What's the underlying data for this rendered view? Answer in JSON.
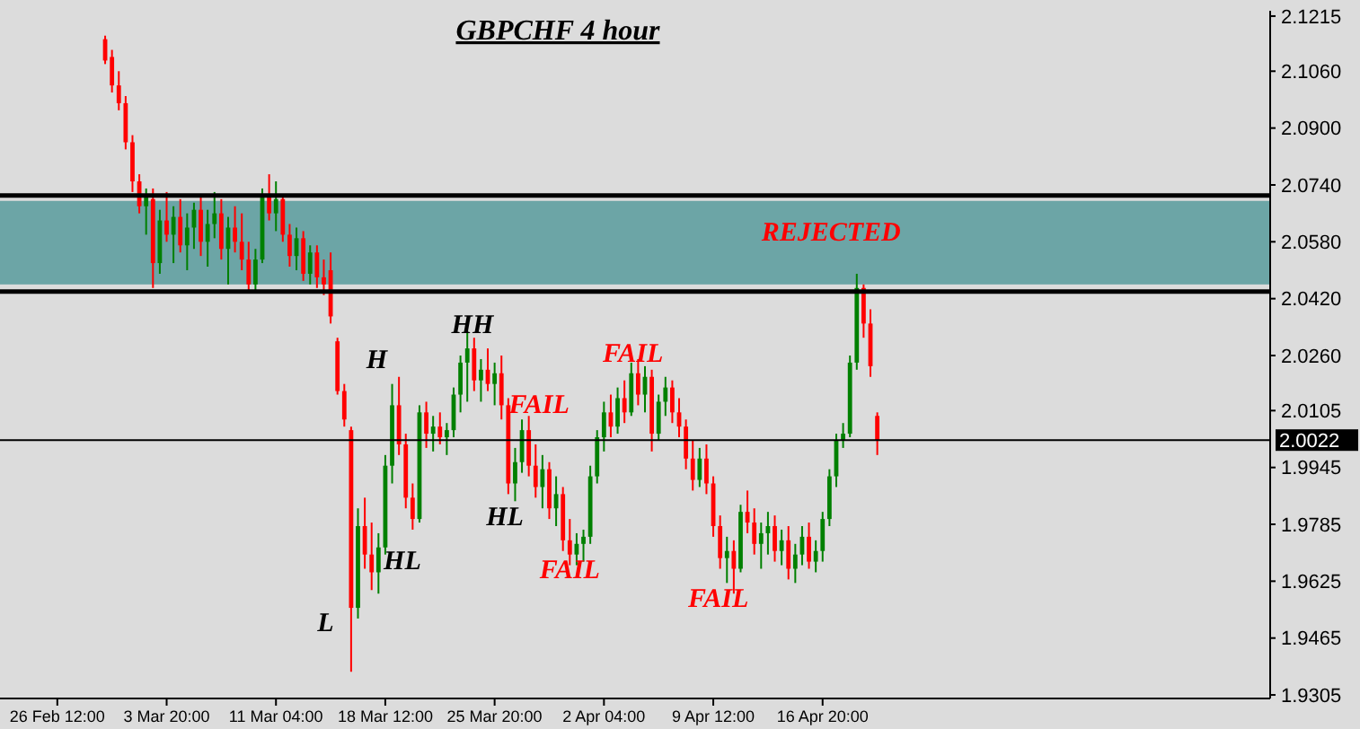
{
  "chart_data": {
    "type": "candlestick",
    "title": "GBPCHF 4 hour",
    "categories": [
      "26 Feb 12:00",
      null,
      null,
      null,
      null,
      null,
      null,
      null,
      null,
      null,
      null,
      null,
      null,
      null,
      null,
      null,
      "3 Mar 20:00",
      null,
      null,
      null,
      null,
      null,
      null,
      null,
      null,
      null,
      null,
      null,
      null,
      null,
      null,
      null,
      "11 Mar 04:00",
      null,
      null,
      null,
      null,
      null,
      null,
      null,
      null,
      null,
      null,
      null,
      null,
      null,
      null,
      null,
      "18 Mar 12:00",
      null,
      null,
      null,
      null,
      null,
      null,
      null,
      null,
      null,
      null,
      null,
      null,
      null,
      null,
      null,
      "25 Mar 20:00",
      null,
      null,
      null,
      null,
      null,
      null,
      null,
      null,
      null,
      null,
      null,
      null,
      null,
      null,
      null,
      "2 Apr 04:00",
      null,
      null,
      null,
      null,
      null,
      null,
      null,
      null,
      null,
      null,
      null,
      null,
      null,
      null,
      null,
      "9 Apr 12:00",
      null,
      null,
      null,
      null,
      null,
      null,
      null,
      null,
      null,
      null,
      null,
      null,
      null,
      null,
      null,
      "16 Apr 20:00",
      null,
      null,
      null,
      null,
      null,
      null,
      null,
      null,
      null,
      null,
      null,
      null,
      null,
      null,
      null,
      null,
      null,
      null,
      null,
      null,
      null,
      null,
      null,
      null,
      null,
      null,
      null,
      null,
      null,
      null,
      null,
      null,
      null,
      null,
      null,
      null,
      null,
      null,
      null,
      null,
      null,
      null,
      null,
      null,
      null,
      null,
      null,
      null,
      null,
      null,
      null,
      null,
      null,
      null,
      null,
      null,
      null,
      null,
      null,
      null,
      null,
      null,
      null,
      null,
      null
    ],
    "ohlc": [
      null,
      null,
      null,
      null,
      null,
      null,
      null,
      [
        2.115,
        2.116,
        2.108,
        2.109
      ],
      [
        2.11,
        2.112,
        2.1,
        2.102
      ],
      [
        2.102,
        2.106,
        2.095,
        2.097
      ],
      [
        2.097,
        2.099,
        2.084,
        2.086
      ],
      [
        2.086,
        2.088,
        2.072,
        2.075
      ],
      [
        2.075,
        2.077,
        2.066,
        2.068
      ],
      [
        2.068,
        2.073,
        2.06,
        2.071
      ],
      [
        2.07,
        2.073,
        2.045,
        2.052
      ],
      [
        2.052,
        2.067,
        2.049,
        2.064
      ],
      [
        2.064,
        2.072,
        2.058,
        2.06
      ],
      [
        2.06,
        2.068,
        2.052,
        2.065
      ],
      [
        2.065,
        2.07,
        2.055,
        2.057
      ],
      [
        2.057,
        2.066,
        2.05,
        2.062
      ],
      [
        2.062,
        2.069,
        2.056,
        2.067
      ],
      [
        2.067,
        2.071,
        2.054,
        2.058
      ],
      [
        2.058,
        2.067,
        2.051,
        2.063
      ],
      [
        2.063,
        2.072,
        2.059,
        2.066
      ],
      [
        2.066,
        2.07,
        2.053,
        2.056
      ],
      [
        2.056,
        2.065,
        2.046,
        2.062
      ],
      [
        2.062,
        2.068,
        2.055,
        2.058
      ],
      [
        2.058,
        2.066,
        2.05,
        2.053
      ],
      [
        2.053,
        2.058,
        2.044,
        2.046
      ],
      [
        2.046,
        2.056,
        2.044,
        2.053
      ],
      [
        2.053,
        2.073,
        2.052,
        2.071
      ],
      [
        2.071,
        2.077,
        2.064,
        2.066
      ],
      [
        2.066,
        2.075,
        2.061,
        2.07
      ],
      [
        2.07,
        2.071,
        2.058,
        2.06
      ],
      [
        2.06,
        2.063,
        2.051,
        2.054
      ],
      [
        2.054,
        2.062,
        2.05,
        2.059
      ],
      [
        2.059,
        2.061,
        2.047,
        2.049
      ],
      [
        2.049,
        2.057,
        2.046,
        2.055
      ],
      [
        2.055,
        2.057,
        2.045,
        2.048
      ],
      [
        2.048,
        2.053,
        2.043,
        2.046
      ],
      [
        2.05,
        2.055,
        2.035,
        2.037
      ],
      [
        2.03,
        2.031,
        2.015,
        2.016
      ],
      [
        2.016,
        2.018,
        2.006,
        2.008
      ],
      [
        2.005,
        2.006,
        1.937,
        1.955
      ],
      [
        1.955,
        1.983,
        1.952,
        1.978
      ],
      [
        1.978,
        1.986,
        1.966,
        1.97
      ],
      [
        1.97,
        1.979,
        1.96,
        1.965
      ],
      [
        1.965,
        1.976,
        1.959,
        1.972
      ],
      [
        1.972,
        1.998,
        1.97,
        1.995
      ],
      [
        1.995,
        2.018,
        1.99,
        2.012
      ],
      [
        2.012,
        2.02,
        1.998,
        2.001
      ],
      [
        2.001,
        2.004,
        1.983,
        1.986
      ],
      [
        1.986,
        1.99,
        1.977,
        1.98
      ],
      [
        1.98,
        2.012,
        1.979,
        2.01
      ],
      [
        2.01,
        2.013,
        2.0,
        2.004
      ],
      [
        2.004,
        2.009,
        1.999,
        2.006
      ],
      [
        2.006,
        2.01,
        2.001,
        2.003
      ],
      [
        2.003,
        2.007,
        1.998,
        2.005
      ],
      [
        2.005,
        2.017,
        2.003,
        2.015
      ],
      [
        2.015,
        2.026,
        2.01,
        2.024
      ],
      [
        2.024,
        2.033,
        2.013,
        2.028
      ],
      [
        2.028,
        2.031,
        2.016,
        2.019
      ],
      [
        2.019,
        2.025,
        2.013,
        2.022
      ],
      [
        2.022,
        2.028,
        2.016,
        2.018
      ],
      [
        2.018,
        2.024,
        2.012,
        2.021
      ],
      [
        2.021,
        2.026,
        2.008,
        2.012
      ],
      [
        2.012,
        2.014,
        1.987,
        1.99
      ],
      [
        1.99,
        2.0,
        1.985,
        1.996
      ],
      [
        1.996,
        2.008,
        1.993,
        2.005
      ],
      [
        2.005,
        2.009,
        1.992,
        1.995
      ],
      [
        1.995,
        2.001,
        1.986,
        1.989
      ],
      [
        1.989,
        1.998,
        1.983,
        1.994
      ],
      [
        1.994,
        1.996,
        1.98,
        1.983
      ],
      [
        1.983,
        1.992,
        1.978,
        1.987
      ],
      [
        1.987,
        1.989,
        1.971,
        1.974
      ],
      [
        1.974,
        1.98,
        1.967,
        1.97
      ],
      [
        1.97,
        1.976,
        1.967,
        1.973
      ],
      [
        1.973,
        1.977,
        1.968,
        1.975
      ],
      [
        1.975,
        1.995,
        1.973,
        1.992
      ],
      [
        1.992,
        2.005,
        1.99,
        2.003
      ],
      [
        2.003,
        2.013,
        1.999,
        2.01
      ],
      [
        2.01,
        2.015,
        2.003,
        2.006
      ],
      [
        2.006,
        2.017,
        2.004,
        2.014
      ],
      [
        2.014,
        2.019,
        2.007,
        2.01
      ],
      [
        2.01,
        2.024,
        2.009,
        2.021
      ],
      [
        2.021,
        2.025,
        2.012,
        2.015
      ],
      [
        2.015,
        2.023,
        2.01,
        2.02
      ],
      [
        2.02,
        2.022,
        1.999,
        2.004
      ],
      [
        2.004,
        2.015,
        2.002,
        2.013
      ],
      [
        2.013,
        2.02,
        2.009,
        2.017
      ],
      [
        2.017,
        2.019,
        2.007,
        2.01
      ],
      [
        2.01,
        2.014,
        2.003,
        2.006
      ],
      [
        2.006,
        2.008,
        1.994,
        1.997
      ],
      [
        1.997,
        2.002,
        1.988,
        1.991
      ],
      [
        1.991,
        2.0,
        1.989,
        1.997
      ],
      [
        1.997,
        2.001,
        1.987,
        1.99
      ],
      [
        1.99,
        1.992,
        1.975,
        1.978
      ],
      [
        1.978,
        1.981,
        1.966,
        1.969
      ],
      [
        1.969,
        1.975,
        1.962,
        1.971
      ],
      [
        1.971,
        1.974,
        1.959,
        1.966
      ],
      [
        1.966,
        1.984,
        1.965,
        1.982
      ],
      [
        1.982,
        1.988,
        1.976,
        1.979
      ],
      [
        1.979,
        1.983,
        1.97,
        1.973
      ],
      [
        1.973,
        1.979,
        1.966,
        1.976
      ],
      [
        1.976,
        1.982,
        1.97,
        1.978
      ],
      [
        1.978,
        1.981,
        1.968,
        1.971
      ],
      [
        1.971,
        1.977,
        1.967,
        1.974
      ],
      [
        1.974,
        1.978,
        1.963,
        1.966
      ],
      [
        1.966,
        1.973,
        1.962,
        1.97
      ],
      [
        1.97,
        1.978,
        1.967,
        1.975
      ],
      [
        1.975,
        1.979,
        1.966,
        1.968
      ],
      [
        1.968,
        1.974,
        1.965,
        1.971
      ],
      [
        1.971,
        1.982,
        1.968,
        1.98
      ],
      [
        1.98,
        1.994,
        1.978,
        1.992
      ],
      [
        1.992,
        2.004,
        1.989,
        2.002
      ],
      [
        2.002,
        2.007,
        2.0,
        2.004
      ],
      [
        2.004,
        2.026,
        2.003,
        2.024
      ],
      [
        2.024,
        2.049,
        2.022,
        2.045
      ],
      [
        2.045,
        2.046,
        2.031,
        2.035
      ],
      [
        2.035,
        2.039,
        2.02,
        2.023
      ],
      [
        2.009,
        2.01,
        1.998,
        2.0022
      ],
      null,
      null,
      null,
      null,
      null,
      null,
      null,
      null,
      null,
      null,
      null,
      null,
      null,
      null,
      null,
      null,
      null,
      null,
      null,
      null,
      null,
      null,
      null,
      null,
      null,
      null,
      null,
      null,
      null,
      null,
      null,
      null,
      null,
      null,
      null,
      null,
      null,
      null,
      null,
      null,
      null,
      null,
      null,
      null,
      null,
      null,
      null,
      null,
      null,
      null,
      null,
      null,
      null,
      null,
      null,
      null,
      null
    ],
    "colors": [
      null,
      null,
      null,
      null,
      null,
      null,
      null,
      "#ff0000",
      "#ff0000",
      "#ff0000",
      "#ff0000",
      "#ff0000",
      "#ff0000",
      "#008000",
      "#ff0000",
      "#008000",
      "#ff0000",
      "#008000",
      "#ff0000",
      "#008000",
      "#008000",
      "#ff0000",
      "#008000",
      "#008000",
      "#ff0000",
      "#008000",
      "#ff0000",
      "#ff0000",
      "#ff0000",
      "#008000",
      "#008000",
      "#ff0000",
      "#008000",
      "#ff0000",
      "#ff0000",
      "#008000",
      "#ff0000",
      "#008000",
      "#ff0000",
      "#ff0000",
      "#ff0000",
      "#ff0000",
      "#ff0000",
      "#ff0000",
      "#008000",
      "#ff0000",
      "#ff0000",
      "#008000",
      "#008000",
      "#008000",
      "#ff0000",
      "#ff0000",
      "#ff0000",
      "#008000",
      "#ff0000",
      "#008000",
      "#ff0000",
      "#008000",
      "#008000",
      "#008000",
      "#008000",
      "#ff0000",
      "#008000",
      "#ff0000",
      "#008000",
      "#ff0000",
      "#ff0000",
      "#008000",
      "#008000",
      "#ff0000",
      "#ff0000",
      "#008000",
      "#ff0000",
      "#008000",
      "#ff0000",
      "#ff0000",
      "#008000",
      "#008000",
      "#008000",
      "#008000",
      "#008000",
      "#ff0000",
      "#008000",
      "#ff0000",
      "#008000",
      "#ff0000",
      "#008000",
      "#ff0000",
      "#008000",
      "#008000",
      "#ff0000",
      "#ff0000",
      "#ff0000",
      "#ff0000",
      "#008000",
      "#ff0000",
      "#ff0000",
      "#ff0000",
      "#008000",
      "#ff0000",
      "#008000",
      "#ff0000",
      "#ff0000",
      "#008000",
      "#008000",
      "#ff0000",
      "#008000",
      "#ff0000",
      "#008000",
      "#008000",
      "#ff0000",
      "#008000",
      "#008000",
      "#008000",
      "#008000",
      "#008000",
      "#008000",
      "#008000",
      "#ff0000",
      "#ff0000",
      "#ff0000",
      null,
      null,
      null,
      null,
      null,
      null,
      null,
      null,
      null,
      null,
      null,
      null,
      null,
      null,
      null,
      null,
      null,
      null,
      null,
      null,
      null,
      null,
      null,
      null,
      null,
      null,
      null,
      null,
      null,
      null,
      null,
      null,
      null,
      null,
      null,
      null,
      null,
      null,
      null,
      null,
      null,
      null,
      null,
      null,
      null,
      null,
      null,
      null,
      null,
      null,
      null,
      null,
      null,
      null,
      null,
      null,
      null
    ],
    "ylim": [
      1.9295,
      2.123
    ],
    "yticks": [
      2.1215,
      {
        "value": 2.106,
        "label": "2.1060"
      },
      {
        "value": 2.09,
        "label": "2.0900"
      },
      {
        "value": 2.074,
        "label": "2.0740"
      },
      {
        "value": 2.058,
        "label": "2.0580"
      },
      {
        "value": 2.042,
        "label": "2.0420"
      },
      {
        "value": 2.026,
        "label": "2.0260"
      },
      2.0105,
      1.9945,
      1.9785,
      1.9625,
      1.9465,
      1.9305
    ],
    "ref_lines": [
      {
        "axis": "y",
        "value": 2.071,
        "color": "#000000"
      },
      {
        "axis": "y",
        "value": 2.044,
        "color": "#000000"
      },
      {
        "axis": "y",
        "value": 2.0022,
        "label": "2.0022",
        "color": "#000000"
      }
    ],
    "bands": [
      {
        "axis": "y",
        "from": 2.046,
        "to": 2.0695,
        "color": "#5f9ea0"
      }
    ],
    "annotations": [
      "H",
      "HH",
      "L",
      "HL",
      "HL",
      "FAIL",
      "FAIL",
      "FAIL",
      "FAIL",
      "REJECTED"
    ],
    "grid": false
  }
}
